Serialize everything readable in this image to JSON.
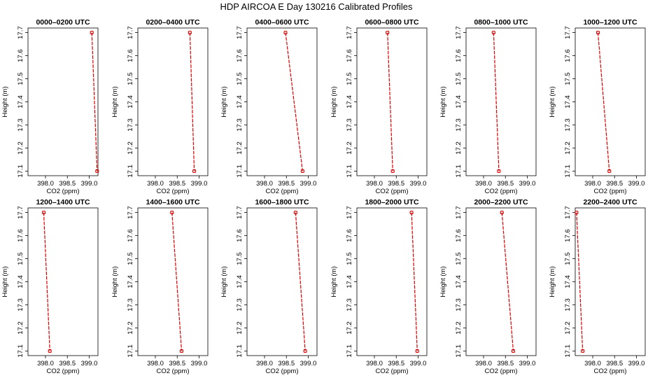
{
  "figure_title": "HDP AIRCOA E  Day 130216  Calibrated Profiles",
  "chart_data": [
    {
      "type": "line",
      "title": "0000–0200 UTC",
      "xlabel": "CO2 (ppm)",
      "ylabel": "Height (m)",
      "xlim": [
        397.6,
        399.2
      ],
      "ylim": [
        17.08,
        17.72
      ],
      "xticks": [
        "398.0",
        "398.5",
        "399.0"
      ],
      "yticks": [
        "17.1",
        "17.2",
        "17.3",
        "17.4",
        "17.5",
        "17.6",
        "17.7"
      ],
      "series": [
        {
          "points": [
            {
              "x": 399.06,
              "y": 17.7
            },
            {
              "x": 399.18,
              "y": 17.1
            }
          ]
        }
      ]
    },
    {
      "type": "line",
      "title": "0200–0400 UTC",
      "xlabel": "CO2 (ppm)",
      "ylabel": "Height (m)",
      "xlim": [
        397.6,
        399.2
      ],
      "ylim": [
        17.08,
        17.72
      ],
      "xticks": [
        "398.0",
        "398.5",
        "399.0"
      ],
      "yticks": [
        "17.1",
        "17.2",
        "17.3",
        "17.4",
        "17.5",
        "17.6",
        "17.7"
      ],
      "series": [
        {
          "points": [
            {
              "x": 398.79,
              "y": 17.7
            },
            {
              "x": 398.89,
              "y": 17.1
            }
          ]
        }
      ]
    },
    {
      "type": "line",
      "title": "0400–0600 UTC",
      "xlabel": "CO2 (ppm)",
      "ylabel": "Height (m)",
      "xlim": [
        397.6,
        399.2
      ],
      "ylim": [
        17.08,
        17.72
      ],
      "xticks": [
        "398.0",
        "398.5",
        "399.0"
      ],
      "yticks": [
        "17.1",
        "17.2",
        "17.3",
        "17.4",
        "17.5",
        "17.6",
        "17.7"
      ],
      "series": [
        {
          "points": [
            {
              "x": 398.48,
              "y": 17.7
            },
            {
              "x": 398.87,
              "y": 17.1
            }
          ]
        }
      ]
    },
    {
      "type": "line",
      "title": "0600–0800 UTC",
      "xlabel": "CO2 (ppm)",
      "ylabel": "Height (m)",
      "xlim": [
        397.6,
        399.2
      ],
      "ylim": [
        17.08,
        17.72
      ],
      "xticks": [
        "398.0",
        "398.5",
        "399.0"
      ],
      "yticks": [
        "17.1",
        "17.2",
        "17.3",
        "17.4",
        "17.5",
        "17.6",
        "17.7"
      ],
      "series": [
        {
          "points": [
            {
              "x": 398.3,
              "y": 17.7
            },
            {
              "x": 398.42,
              "y": 17.1
            }
          ]
        }
      ]
    },
    {
      "type": "line",
      "title": "0800–1000 UTC",
      "xlabel": "CO2 (ppm)",
      "ylabel": "Height (m)",
      "xlim": [
        397.6,
        399.2
      ],
      "ylim": [
        17.08,
        17.72
      ],
      "xticks": [
        "398.0",
        "398.5",
        "399.0"
      ],
      "yticks": [
        "17.1",
        "17.2",
        "17.3",
        "17.4",
        "17.5",
        "17.6",
        "17.7"
      ],
      "series": [
        {
          "points": [
            {
              "x": 398.23,
              "y": 17.7
            },
            {
              "x": 398.35,
              "y": 17.1
            }
          ]
        }
      ]
    },
    {
      "type": "line",
      "title": "1000–1200 UTC",
      "xlabel": "CO2 (ppm)",
      "ylabel": "Height (m)",
      "xlim": [
        397.6,
        399.2
      ],
      "ylim": [
        17.08,
        17.72
      ],
      "xticks": [
        "398.0",
        "398.5",
        "399.0"
      ],
      "yticks": [
        "17.1",
        "17.2",
        "17.3",
        "17.4",
        "17.5",
        "17.6",
        "17.7"
      ],
      "series": [
        {
          "points": [
            {
              "x": 398.12,
              "y": 17.7
            },
            {
              "x": 398.38,
              "y": 17.1
            }
          ]
        }
      ]
    },
    {
      "type": "line",
      "title": "1200–1400 UTC",
      "xlabel": "CO2 (ppm)",
      "ylabel": "Height (m)",
      "xlim": [
        397.6,
        399.2
      ],
      "ylim": [
        17.08,
        17.72
      ],
      "xticks": [
        "398.0",
        "398.5",
        "399.0"
      ],
      "yticks": [
        "17.1",
        "17.2",
        "17.3",
        "17.4",
        "17.5",
        "17.6",
        "17.7"
      ],
      "series": [
        {
          "points": [
            {
              "x": 397.96,
              "y": 17.7
            },
            {
              "x": 398.1,
              "y": 17.1
            }
          ]
        }
      ]
    },
    {
      "type": "line",
      "title": "1400–1600 UTC",
      "xlabel": "CO2 (ppm)",
      "ylabel": "Height (m)",
      "xlim": [
        397.6,
        399.2
      ],
      "ylim": [
        17.08,
        17.72
      ],
      "xticks": [
        "398.0",
        "398.5",
        "399.0"
      ],
      "yticks": [
        "17.1",
        "17.2",
        "17.3",
        "17.4",
        "17.5",
        "17.6",
        "17.7"
      ],
      "series": [
        {
          "points": [
            {
              "x": 398.38,
              "y": 17.7
            },
            {
              "x": 398.6,
              "y": 17.1
            }
          ]
        }
      ]
    },
    {
      "type": "line",
      "title": "1600–1800 UTC",
      "xlabel": "CO2 (ppm)",
      "ylabel": "Height (m)",
      "xlim": [
        397.6,
        399.2
      ],
      "ylim": [
        17.08,
        17.72
      ],
      "xticks": [
        "398.0",
        "398.5",
        "399.0"
      ],
      "yticks": [
        "17.1",
        "17.2",
        "17.3",
        "17.4",
        "17.5",
        "17.6",
        "17.7"
      ],
      "series": [
        {
          "points": [
            {
              "x": 398.71,
              "y": 17.7
            },
            {
              "x": 398.93,
              "y": 17.1
            }
          ]
        }
      ]
    },
    {
      "type": "line",
      "title": "1800–2000 UTC",
      "xlabel": "CO2 (ppm)",
      "ylabel": "Height (m)",
      "xlim": [
        397.6,
        399.2
      ],
      "ylim": [
        17.08,
        17.72
      ],
      "xticks": [
        "398.0",
        "398.5",
        "399.0"
      ],
      "yticks": [
        "17.1",
        "17.2",
        "17.3",
        "17.4",
        "17.5",
        "17.6",
        "17.7"
      ],
      "series": [
        {
          "points": [
            {
              "x": 398.85,
              "y": 17.7
            },
            {
              "x": 398.98,
              "y": 17.1
            }
          ]
        }
      ]
    },
    {
      "type": "line",
      "title": "2000–2200 UTC",
      "xlabel": "CO2 (ppm)",
      "ylabel": "Height (m)",
      "xlim": [
        397.6,
        399.2
      ],
      "ylim": [
        17.08,
        17.72
      ],
      "xticks": [
        "398.0",
        "398.5",
        "399.0"
      ],
      "yticks": [
        "17.1",
        "17.2",
        "17.3",
        "17.4",
        "17.5",
        "17.6",
        "17.7"
      ],
      "series": [
        {
          "points": [
            {
              "x": 398.42,
              "y": 17.7
            },
            {
              "x": 398.68,
              "y": 17.1
            }
          ]
        }
      ]
    },
    {
      "type": "line",
      "title": "2200–2400 UTC",
      "xlabel": "CO2 (ppm)",
      "ylabel": "Height (m)",
      "xlim": [
        397.6,
        399.2
      ],
      "ylim": [
        17.08,
        17.72
      ],
      "xticks": [
        "398.0",
        "398.5",
        "399.0"
      ],
      "yticks": [
        "17.1",
        "17.2",
        "17.3",
        "17.4",
        "17.5",
        "17.6",
        "17.7"
      ],
      "series": [
        {
          "points": [
            {
              "x": 397.63,
              "y": 17.7
            },
            {
              "x": 397.77,
              "y": 17.1
            }
          ]
        }
      ]
    }
  ],
  "colors": {
    "line": "#dd0000",
    "marker": "#dd0000",
    "axis": "#000000"
  }
}
